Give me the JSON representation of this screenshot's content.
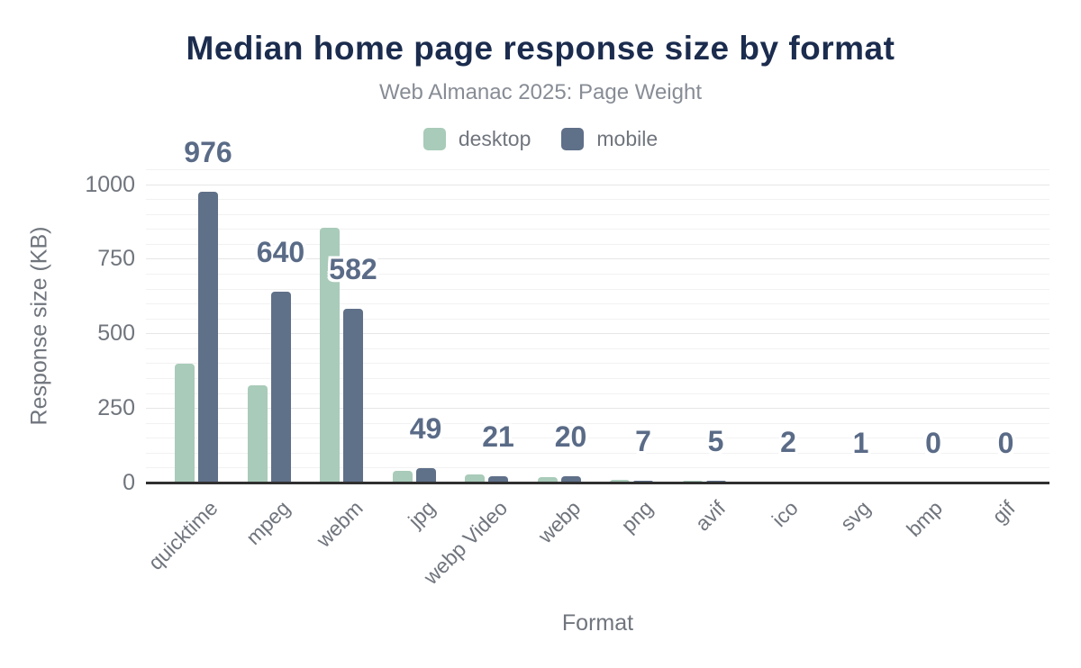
{
  "chart_data": {
    "type": "bar",
    "title": "Median home page response size by format",
    "subtitle": "Web Almanac 2025: Page Weight",
    "xlabel": "Format",
    "ylabel": "Response size (KB)",
    "categories": [
      "quicktime",
      "mpeg",
      "webm",
      "jpg",
      "webp Video",
      "webp",
      "png",
      "avif",
      "ico",
      "svg",
      "bmp",
      "gif"
    ],
    "series": [
      {
        "name": "desktop",
        "color": "#a9cbb9",
        "values": [
          399,
          325,
          855,
          40,
          28,
          19,
          8,
          7,
          2,
          1,
          0,
          0
        ]
      },
      {
        "name": "mobile",
        "color": "#5f7089",
        "values": [
          976,
          640,
          582,
          49,
          21,
          20,
          7,
          5,
          2,
          1,
          0,
          0
        ]
      }
    ],
    "data_labels": {
      "series": "mobile",
      "values": [
        "976",
        "640",
        "582",
        "49",
        "21",
        "20",
        "7",
        "5",
        "2",
        "1",
        "0",
        "0"
      ]
    },
    "ylim": [
      0,
      1050
    ],
    "yticks": [
      0,
      250,
      500,
      750,
      1000
    ],
    "minor_gridline_step": 50,
    "grid": true,
    "legend_position": "top",
    "colors": {
      "title": "#1b2c4e",
      "subtitle": "#878c95",
      "axis_text": "#70757d",
      "value_label": "#5a6b87",
      "gridline_major": "#e6e6e6",
      "gridline_minor": "#f2f2f2",
      "axis_line": "#303030",
      "background": "#ffffff"
    }
  }
}
